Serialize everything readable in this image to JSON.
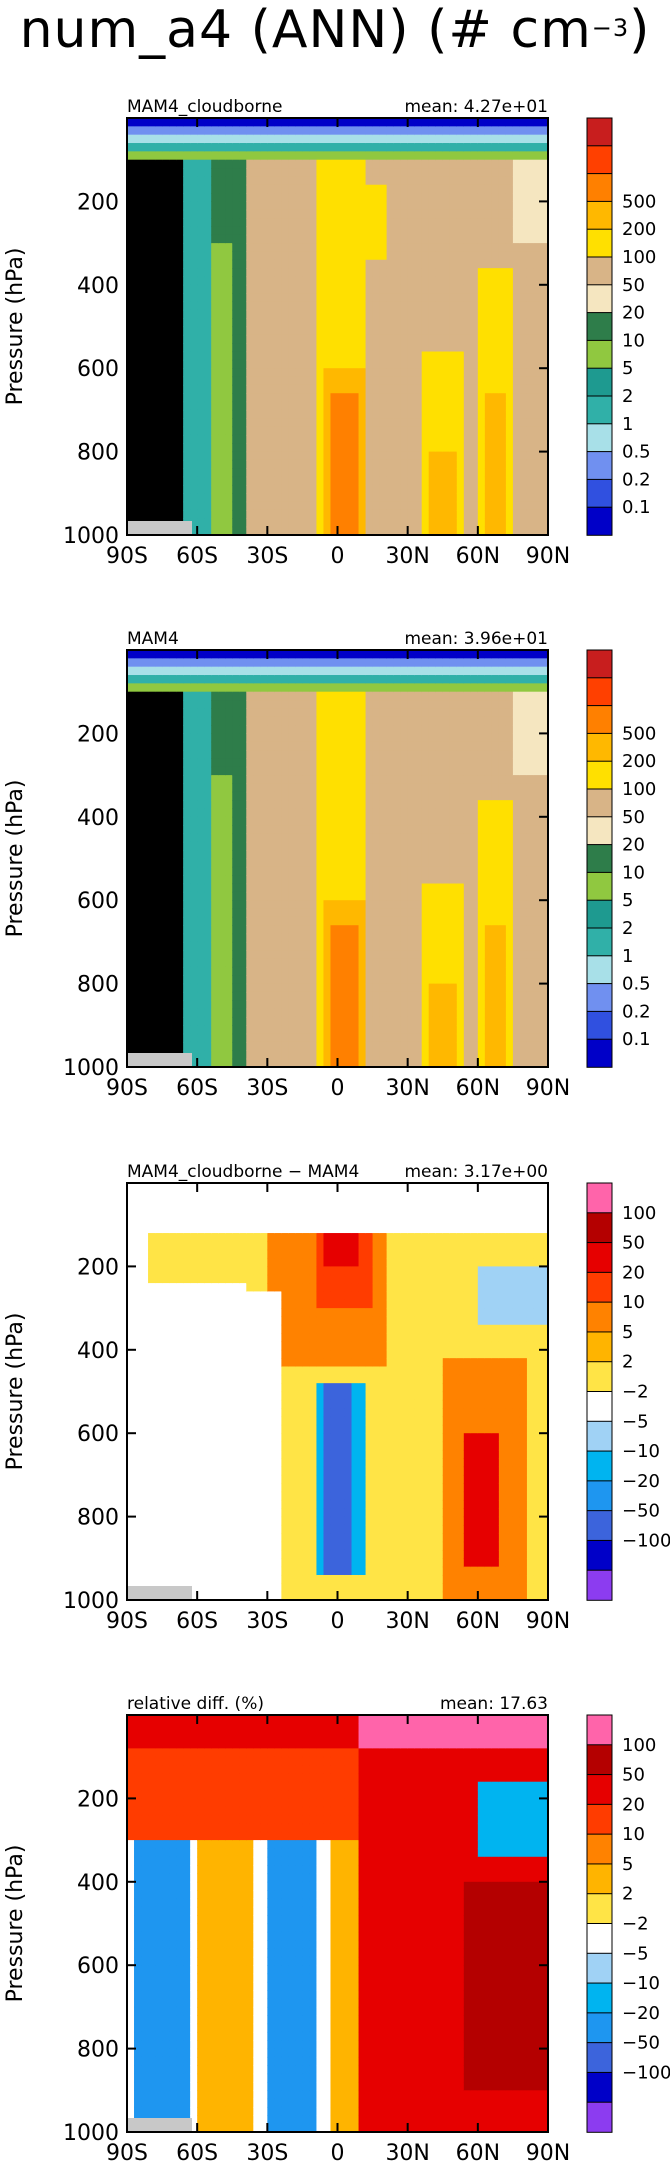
{
  "title": {
    "main": "num_a4 (ANN) (# cm",
    "exponent": "−3",
    "close": ")"
  },
  "colors": {
    "abs_scale": [
      "#0000c8",
      "#3050e0",
      "#7090f0",
      "#a8e0e8",
      "#30b0a8",
      "#1e9a90",
      "#90c840",
      "#2e7d4a",
      "#f5e6c0",
      "#d8b487",
      "#ffe000",
      "#ffb800",
      "#ff8000",
      "#ff4000",
      "#c81e1e"
    ],
    "diff_scale": [
      "#8c3cf0",
      "#0000c8",
      "#3c64dc",
      "#1e96f0",
      "#00b4f0",
      "#a0d2f5",
      "#ffffff",
      "#ffe446",
      "#ffb400",
      "#ff8200",
      "#ff3c00",
      "#e60000",
      "#b40000",
      "#ff64aa"
    ],
    "missing": "#c8c8c8"
  },
  "chart_data": [
    {
      "type": "heatmap",
      "left_label": "MAM4_cloudborne",
      "right_label": "mean: 4.27e+01",
      "ylabel": "Pressure (hPa)",
      "x": {
        "ticks": [
          "90S",
          "60S",
          "30S",
          "0",
          "30N",
          "60N",
          "90N"
        ],
        "range": [
          -90,
          90
        ]
      },
      "y": {
        "ticks": [
          "200",
          "400",
          "600",
          "800",
          "1000"
        ],
        "range": [
          0,
          1000
        ],
        "inverted": true
      },
      "colorbar": {
        "labels": [
          "0.1",
          "0.2",
          "0.5",
          "1",
          "2",
          "5",
          "10",
          "20",
          "50",
          "100",
          "200",
          "500"
        ],
        "scale": "abs"
      }
    },
    {
      "type": "heatmap",
      "left_label": "MAM4",
      "right_label": "mean: 3.96e+01",
      "ylabel": "Pressure (hPa)",
      "x": {
        "ticks": [
          "90S",
          "60S",
          "30S",
          "0",
          "30N",
          "60N",
          "90N"
        ],
        "range": [
          -90,
          90
        ]
      },
      "y": {
        "ticks": [
          "200",
          "400",
          "600",
          "800",
          "1000"
        ],
        "range": [
          0,
          1000
        ],
        "inverted": true
      },
      "colorbar": {
        "labels": [
          "0.1",
          "0.2",
          "0.5",
          "1",
          "2",
          "5",
          "10",
          "20",
          "50",
          "100",
          "200",
          "500"
        ],
        "scale": "abs"
      }
    },
    {
      "type": "heatmap",
      "left_label": "MAM4_cloudborne − MAM4",
      "right_label": "mean: 3.17e+00",
      "ylabel": "Pressure (hPa)",
      "x": {
        "ticks": [
          "90S",
          "60S",
          "30S",
          "0",
          "30N",
          "60N",
          "90N"
        ],
        "range": [
          -90,
          90
        ]
      },
      "y": {
        "ticks": [
          "200",
          "400",
          "600",
          "800",
          "1000"
        ],
        "range": [
          0,
          1000
        ],
        "inverted": true
      },
      "colorbar": {
        "labels": [
          "−100",
          "−50",
          "−20",
          "−10",
          "−5",
          "−2",
          "2",
          "5",
          "10",
          "20",
          "50",
          "100"
        ],
        "scale": "diff"
      }
    },
    {
      "type": "heatmap",
      "left_label": "relative diff. (%)",
      "right_label": "mean: 17.63",
      "ylabel": "Pressure (hPa)",
      "x": {
        "ticks": [
          "90S",
          "60S",
          "30S",
          "0",
          "30N",
          "60N",
          "90N"
        ],
        "range": [
          -90,
          90
        ]
      },
      "y": {
        "ticks": [
          "200",
          "400",
          "600",
          "800",
          "1000"
        ],
        "range": [
          0,
          1000
        ],
        "inverted": true
      },
      "colorbar": {
        "labels": [
          "−100",
          "−50",
          "−20",
          "−10",
          "−5",
          "−2",
          "2",
          "5",
          "10",
          "20",
          "50",
          "100"
        ],
        "scale": "diff"
      }
    }
  ]
}
